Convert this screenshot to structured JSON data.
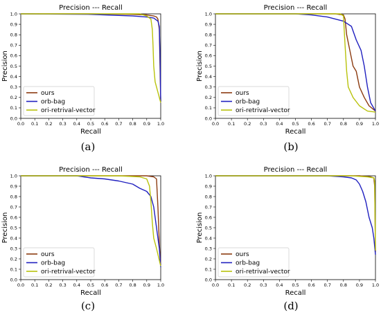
{
  "chart_data": [
    {
      "type": "line",
      "title": "Precision --- Recall",
      "xlabel": "Recall",
      "ylabel": "Precision",
      "caption": "(a)",
      "xlim": [
        0.0,
        1.0
      ],
      "ylim": [
        0.0,
        1.0
      ],
      "xticks": [
        "0.0",
        "0.1",
        "0.2",
        "0.3",
        "0.4",
        "0.5",
        "0.6",
        "0.7",
        "0.8",
        "0.9",
        "1.0"
      ],
      "yticks": [
        "0.0",
        "0.1",
        "0.2",
        "0.3",
        "0.4",
        "0.5",
        "0.6",
        "0.7",
        "0.8",
        "0.9",
        "1.0"
      ],
      "legend_position": "lower-left",
      "series": [
        {
          "name": "ours",
          "color": "#8b3a0f",
          "points": [
            [
              0.0,
              1.0
            ],
            [
              0.5,
              1.0
            ],
            [
              0.8,
              0.995
            ],
            [
              0.9,
              0.99
            ],
            [
              0.95,
              0.98
            ],
            [
              0.97,
              0.97
            ],
            [
              0.98,
              0.95
            ],
            [
              0.99,
              0.85
            ],
            [
              0.995,
              0.5
            ],
            [
              1.0,
              0.16
            ]
          ]
        },
        {
          "name": "orb-bag",
          "color": "#1f1fbf",
          "points": [
            [
              0.0,
              1.0
            ],
            [
              0.5,
              0.995
            ],
            [
              0.6,
              0.99
            ],
            [
              0.7,
              0.985
            ],
            [
              0.8,
              0.98
            ],
            [
              0.9,
              0.97
            ],
            [
              0.95,
              0.96
            ],
            [
              0.98,
              0.93
            ],
            [
              0.99,
              0.88
            ],
            [
              0.995,
              0.6
            ],
            [
              1.0,
              0.16
            ]
          ]
        },
        {
          "name": "ori-retrival-vector",
          "color": "#b8c20a",
          "points": [
            [
              0.0,
              1.0
            ],
            [
              0.7,
              1.0
            ],
            [
              0.85,
              1.0
            ],
            [
              0.9,
              0.98
            ],
            [
              0.93,
              0.95
            ],
            [
              0.94,
              0.85
            ],
            [
              0.945,
              0.7
            ],
            [
              0.95,
              0.5
            ],
            [
              0.96,
              0.35
            ],
            [
              0.98,
              0.25
            ],
            [
              1.0,
              0.15
            ]
          ]
        }
      ]
    },
    {
      "type": "line",
      "title": "Precision --- Recall",
      "xlabel": "Recall",
      "ylabel": "Precision",
      "caption": "(b)",
      "xlim": [
        0.0,
        1.0
      ],
      "ylim": [
        0.0,
        1.0
      ],
      "xticks": [
        "0.0",
        "0.1",
        "0.2",
        "0.3",
        "0.4",
        "0.5",
        "0.6",
        "0.7",
        "0.8",
        "0.9",
        "1.0"
      ],
      "yticks": [
        "0.0",
        "0.1",
        "0.2",
        "0.3",
        "0.4",
        "0.5",
        "0.6",
        "0.7",
        "0.8",
        "0.9",
        "1.0"
      ],
      "legend_position": "lower-left",
      "series": [
        {
          "name": "ours",
          "color": "#8b3a0f",
          "points": [
            [
              0.0,
              1.0
            ],
            [
              0.5,
              1.0
            ],
            [
              0.75,
              1.0
            ],
            [
              0.8,
              0.99
            ],
            [
              0.81,
              0.95
            ],
            [
              0.82,
              0.8
            ],
            [
              0.84,
              0.65
            ],
            [
              0.86,
              0.5
            ],
            [
              0.88,
              0.45
            ],
            [
              0.9,
              0.3
            ],
            [
              0.93,
              0.2
            ],
            [
              0.96,
              0.12
            ],
            [
              1.0,
              0.07
            ]
          ]
        },
        {
          "name": "orb-bag",
          "color": "#1f1fbf",
          "points": [
            [
              0.0,
              1.0
            ],
            [
              0.5,
              1.0
            ],
            [
              0.6,
              0.99
            ],
            [
              0.7,
              0.97
            ],
            [
              0.75,
              0.95
            ],
            [
              0.8,
              0.93
            ],
            [
              0.85,
              0.88
            ],
            [
              0.88,
              0.75
            ],
            [
              0.91,
              0.65
            ],
            [
              0.93,
              0.5
            ],
            [
              0.95,
              0.3
            ],
            [
              0.97,
              0.15
            ],
            [
              1.0,
              0.07
            ]
          ]
        },
        {
          "name": "ori-retrival-vector",
          "color": "#b8c20a",
          "points": [
            [
              0.0,
              1.0
            ],
            [
              0.5,
              1.0
            ],
            [
              0.78,
              1.0
            ],
            [
              0.8,
              0.98
            ],
            [
              0.81,
              0.7
            ],
            [
              0.82,
              0.45
            ],
            [
              0.83,
              0.3
            ],
            [
              0.86,
              0.2
            ],
            [
              0.9,
              0.12
            ],
            [
              0.95,
              0.07
            ],
            [
              1.0,
              0.06
            ]
          ]
        }
      ]
    },
    {
      "type": "line",
      "title": "Precision --- Recall",
      "xlabel": "Recall",
      "ylabel": "Precision",
      "caption": "(c)",
      "xlim": [
        0.0,
        1.0
      ],
      "ylim": [
        0.0,
        1.0
      ],
      "xticks": [
        "0.0",
        "0.1",
        "0.2",
        "0.3",
        "0.4",
        "0.5",
        "0.6",
        "0.7",
        "0.8",
        "0.9",
        "1.0"
      ],
      "yticks": [
        "0.0",
        "0.1",
        "0.2",
        "0.3",
        "0.4",
        "0.5",
        "0.6",
        "0.7",
        "0.8",
        "0.9",
        "1.0"
      ],
      "legend_position": "lower-left",
      "series": [
        {
          "name": "ours",
          "color": "#8b3a0f",
          "points": [
            [
              0.0,
              1.0
            ],
            [
              0.8,
              1.0
            ],
            [
              0.9,
              1.0
            ],
            [
              0.95,
              0.99
            ],
            [
              0.97,
              0.97
            ],
            [
              0.98,
              0.7
            ],
            [
              0.99,
              0.35
            ],
            [
              1.0,
              0.14
            ]
          ]
        },
        {
          "name": "orb-bag",
          "color": "#1f1fbf",
          "points": [
            [
              0.0,
              1.0
            ],
            [
              0.4,
              1.0
            ],
            [
              0.45,
              0.99
            ],
            [
              0.5,
              0.98
            ],
            [
              0.6,
              0.97
            ],
            [
              0.7,
              0.95
            ],
            [
              0.8,
              0.92
            ],
            [
              0.85,
              0.88
            ],
            [
              0.9,
              0.85
            ],
            [
              0.93,
              0.8
            ],
            [
              0.95,
              0.7
            ],
            [
              0.97,
              0.5
            ],
            [
              0.99,
              0.3
            ],
            [
              1.0,
              0.12
            ]
          ]
        },
        {
          "name": "ori-retrival-vector",
          "color": "#b8c20a",
          "points": [
            [
              0.0,
              1.0
            ],
            [
              0.7,
              1.0
            ],
            [
              0.85,
              0.99
            ],
            [
              0.9,
              0.97
            ],
            [
              0.92,
              0.9
            ],
            [
              0.93,
              0.75
            ],
            [
              0.94,
              0.55
            ],
            [
              0.95,
              0.4
            ],
            [
              0.97,
              0.3
            ],
            [
              1.0,
              0.13
            ]
          ]
        }
      ]
    },
    {
      "type": "line",
      "title": "Precision --- Recall",
      "xlabel": "Recall",
      "ylabel": "Precision",
      "caption": "(d)",
      "xlim": [
        0.0,
        1.0
      ],
      "ylim": [
        0.0,
        1.0
      ],
      "xticks": [
        "0.0",
        "0.1",
        "0.2",
        "0.3",
        "0.4",
        "0.5",
        "0.6",
        "0.7",
        "0.8",
        "0.9",
        "1.0"
      ],
      "yticks": [
        "0.0",
        "0.1",
        "0.2",
        "0.3",
        "0.4",
        "0.5",
        "0.6",
        "0.7",
        "0.8",
        "0.9",
        "1.0"
      ],
      "legend_position": "lower-left",
      "series": [
        {
          "name": "ours",
          "color": "#8b3a0f",
          "points": [
            [
              0.0,
              1.0
            ],
            [
              0.9,
              1.0
            ],
            [
              0.97,
              0.99
            ],
            [
              0.99,
              0.98
            ],
            [
              0.995,
              0.9
            ],
            [
              1.0,
              0.27
            ]
          ]
        },
        {
          "name": "orb-bag",
          "color": "#1f1fbf",
          "points": [
            [
              0.0,
              1.0
            ],
            [
              0.7,
              1.0
            ],
            [
              0.8,
              0.99
            ],
            [
              0.85,
              0.98
            ],
            [
              0.88,
              0.96
            ],
            [
              0.9,
              0.92
            ],
            [
              0.92,
              0.85
            ],
            [
              0.94,
              0.75
            ],
            [
              0.96,
              0.6
            ],
            [
              0.98,
              0.5
            ],
            [
              0.99,
              0.4
            ],
            [
              1.0,
              0.24
            ]
          ]
        },
        {
          "name": "ori-retrival-vector",
          "color": "#b8c20a",
          "points": [
            [
              0.0,
              1.0
            ],
            [
              0.85,
              1.0
            ],
            [
              0.95,
              0.99
            ],
            [
              0.99,
              0.98
            ],
            [
              0.995,
              0.95
            ],
            [
              1.0,
              0.28
            ]
          ]
        }
      ]
    }
  ]
}
